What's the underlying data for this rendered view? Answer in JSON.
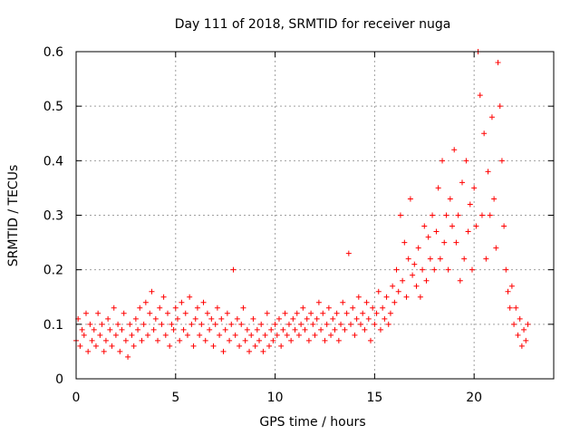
{
  "chart_data": {
    "type": "scatter",
    "title": "Day 111 of 2018, SRMTID for receiver nuga",
    "xlabel": "GPS time / hours",
    "ylabel": "SRMTID / TECUs",
    "xlim": [
      0,
      24
    ],
    "ylim": [
      0,
      0.6
    ],
    "x_ticks": [
      0,
      5,
      10,
      15,
      20
    ],
    "x_tick_labels": [
      "0",
      "5",
      "10",
      "15",
      "20"
    ],
    "y_ticks": [
      0,
      0.1,
      0.2,
      0.3,
      0.4,
      0.5,
      0.6
    ],
    "y_tick_labels": [
      "0",
      "0.1",
      "0.2",
      "0.3",
      "0.4",
      "0.5",
      "0.6"
    ],
    "grid": true,
    "marker": "+",
    "color": "#ff0000",
    "series": [
      {
        "name": "SRMTID",
        "points": [
          [
            0.0,
            0.07
          ],
          [
            0.1,
            0.11
          ],
          [
            0.2,
            0.06
          ],
          [
            0.3,
            0.09
          ],
          [
            0.4,
            0.08
          ],
          [
            0.5,
            0.12
          ],
          [
            0.6,
            0.05
          ],
          [
            0.7,
            0.1
          ],
          [
            0.8,
            0.07
          ],
          [
            0.9,
            0.09
          ],
          [
            1.0,
            0.06
          ],
          [
            1.1,
            0.12
          ],
          [
            1.2,
            0.08
          ],
          [
            1.3,
            0.1
          ],
          [
            1.4,
            0.05
          ],
          [
            1.5,
            0.07
          ],
          [
            1.6,
            0.11
          ],
          [
            1.7,
            0.09
          ],
          [
            1.8,
            0.06
          ],
          [
            1.9,
            0.13
          ],
          [
            2.0,
            0.08
          ],
          [
            2.1,
            0.1
          ],
          [
            2.2,
            0.05
          ],
          [
            2.3,
            0.09
          ],
          [
            2.4,
            0.12
          ],
          [
            2.5,
            0.07
          ],
          [
            2.6,
            0.04
          ],
          [
            2.7,
            0.1
          ],
          [
            2.8,
            0.08
          ],
          [
            2.9,
            0.06
          ],
          [
            3.0,
            0.11
          ],
          [
            3.1,
            0.09
          ],
          [
            3.2,
            0.13
          ],
          [
            3.3,
            0.07
          ],
          [
            3.4,
            0.1
          ],
          [
            3.5,
            0.14
          ],
          [
            3.6,
            0.08
          ],
          [
            3.7,
            0.12
          ],
          [
            3.8,
            0.16
          ],
          [
            3.9,
            0.09
          ],
          [
            4.0,
            0.11
          ],
          [
            4.1,
            0.07
          ],
          [
            4.2,
            0.13
          ],
          [
            4.3,
            0.1
          ],
          [
            4.4,
            0.15
          ],
          [
            4.5,
            0.08
          ],
          [
            4.6,
            0.12
          ],
          [
            4.7,
            0.06
          ],
          [
            4.8,
            0.1
          ],
          [
            4.9,
            0.09
          ],
          [
            5.0,
            0.13
          ],
          [
            5.1,
            0.11
          ],
          [
            5.2,
            0.07
          ],
          [
            5.3,
            0.14
          ],
          [
            5.4,
            0.09
          ],
          [
            5.5,
            0.12
          ],
          [
            5.6,
            0.08
          ],
          [
            5.7,
            0.15
          ],
          [
            5.8,
            0.1
          ],
          [
            5.9,
            0.06
          ],
          [
            6.0,
            0.11
          ],
          [
            6.1,
            0.13
          ],
          [
            6.2,
            0.08
          ],
          [
            6.3,
            0.1
          ],
          [
            6.4,
            0.14
          ],
          [
            6.5,
            0.07
          ],
          [
            6.6,
            0.12
          ],
          [
            6.7,
            0.09
          ],
          [
            6.8,
            0.11
          ],
          [
            6.9,
            0.06
          ],
          [
            7.0,
            0.1
          ],
          [
            7.1,
            0.13
          ],
          [
            7.2,
            0.08
          ],
          [
            7.3,
            0.11
          ],
          [
            7.4,
            0.05
          ],
          [
            7.5,
            0.09
          ],
          [
            7.6,
            0.12
          ],
          [
            7.7,
            0.07
          ],
          [
            7.8,
            0.1
          ],
          [
            7.9,
            0.2
          ],
          [
            8.0,
            0.08
          ],
          [
            8.1,
            0.11
          ],
          [
            8.2,
            0.06
          ],
          [
            8.3,
            0.1
          ],
          [
            8.4,
            0.13
          ],
          [
            8.5,
            0.07
          ],
          [
            8.6,
            0.09
          ],
          [
            8.7,
            0.05
          ],
          [
            8.8,
            0.08
          ],
          [
            8.9,
            0.11
          ],
          [
            9.0,
            0.06
          ],
          [
            9.1,
            0.09
          ],
          [
            9.2,
            0.07
          ],
          [
            9.3,
            0.1
          ],
          [
            9.4,
            0.05
          ],
          [
            9.5,
            0.08
          ],
          [
            9.6,
            0.12
          ],
          [
            9.7,
            0.06
          ],
          [
            9.8,
            0.09
          ],
          [
            9.9,
            0.07
          ],
          [
            10.0,
            0.1
          ],
          [
            10.1,
            0.08
          ],
          [
            10.2,
            0.11
          ],
          [
            10.3,
            0.06
          ],
          [
            10.4,
            0.09
          ],
          [
            10.5,
            0.12
          ],
          [
            10.6,
            0.08
          ],
          [
            10.7,
            0.1
          ],
          [
            10.8,
            0.07
          ],
          [
            10.9,
            0.11
          ],
          [
            11.0,
            0.09
          ],
          [
            11.1,
            0.12
          ],
          [
            11.2,
            0.08
          ],
          [
            11.3,
            0.1
          ],
          [
            11.4,
            0.13
          ],
          [
            11.5,
            0.09
          ],
          [
            11.6,
            0.11
          ],
          [
            11.7,
            0.07
          ],
          [
            11.8,
            0.12
          ],
          [
            11.9,
            0.1
          ],
          [
            12.0,
            0.08
          ],
          [
            12.1,
            0.11
          ],
          [
            12.2,
            0.14
          ],
          [
            12.3,
            0.09
          ],
          [
            12.4,
            0.12
          ],
          [
            12.5,
            0.07
          ],
          [
            12.6,
            0.1
          ],
          [
            12.7,
            0.13
          ],
          [
            12.8,
            0.08
          ],
          [
            12.9,
            0.11
          ],
          [
            13.0,
            0.09
          ],
          [
            13.1,
            0.12
          ],
          [
            13.2,
            0.07
          ],
          [
            13.3,
            0.1
          ],
          [
            13.4,
            0.14
          ],
          [
            13.5,
            0.09
          ],
          [
            13.6,
            0.12
          ],
          [
            13.7,
            0.23
          ],
          [
            13.8,
            0.1
          ],
          [
            13.9,
            0.13
          ],
          [
            14.0,
            0.08
          ],
          [
            14.1,
            0.11
          ],
          [
            14.2,
            0.15
          ],
          [
            14.3,
            0.1
          ],
          [
            14.4,
            0.12
          ],
          [
            14.5,
            0.09
          ],
          [
            14.6,
            0.14
          ],
          [
            14.7,
            0.11
          ],
          [
            14.8,
            0.07
          ],
          [
            14.9,
            0.13
          ],
          [
            15.0,
            0.1
          ],
          [
            15.1,
            0.12
          ],
          [
            15.2,
            0.16
          ],
          [
            15.3,
            0.09
          ],
          [
            15.4,
            0.13
          ],
          [
            15.5,
            0.11
          ],
          [
            15.6,
            0.15
          ],
          [
            15.7,
            0.1
          ],
          [
            15.8,
            0.12
          ],
          [
            15.9,
            0.17
          ],
          [
            16.0,
            0.14
          ],
          [
            16.1,
            0.2
          ],
          [
            16.2,
            0.16
          ],
          [
            16.3,
            0.3
          ],
          [
            16.4,
            0.18
          ],
          [
            16.5,
            0.25
          ],
          [
            16.6,
            0.15
          ],
          [
            16.7,
            0.22
          ],
          [
            16.8,
            0.33
          ],
          [
            16.9,
            0.19
          ],
          [
            17.0,
            0.21
          ],
          [
            17.1,
            0.17
          ],
          [
            17.2,
            0.24
          ],
          [
            17.3,
            0.15
          ],
          [
            17.4,
            0.2
          ],
          [
            17.5,
            0.28
          ],
          [
            17.6,
            0.18
          ],
          [
            17.7,
            0.26
          ],
          [
            17.8,
            0.22
          ],
          [
            17.9,
            0.3
          ],
          [
            18.0,
            0.2
          ],
          [
            18.1,
            0.27
          ],
          [
            18.2,
            0.35
          ],
          [
            18.3,
            0.22
          ],
          [
            18.4,
            0.4
          ],
          [
            18.5,
            0.25
          ],
          [
            18.6,
            0.3
          ],
          [
            18.7,
            0.2
          ],
          [
            18.8,
            0.33
          ],
          [
            18.9,
            0.28
          ],
          [
            19.0,
            0.42
          ],
          [
            19.1,
            0.25
          ],
          [
            19.2,
            0.3
          ],
          [
            19.3,
            0.18
          ],
          [
            19.4,
            0.36
          ],
          [
            19.5,
            0.22
          ],
          [
            19.6,
            0.4
          ],
          [
            19.7,
            0.27
          ],
          [
            19.8,
            0.32
          ],
          [
            19.9,
            0.2
          ],
          [
            20.0,
            0.35
          ],
          [
            20.1,
            0.28
          ],
          [
            20.2,
            0.6
          ],
          [
            20.3,
            0.52
          ],
          [
            20.4,
            0.3
          ],
          [
            20.5,
            0.45
          ],
          [
            20.6,
            0.22
          ],
          [
            20.7,
            0.38
          ],
          [
            20.8,
            0.3
          ],
          [
            20.9,
            0.48
          ],
          [
            21.0,
            0.33
          ],
          [
            21.1,
            0.24
          ],
          [
            21.2,
            0.58
          ],
          [
            21.3,
            0.5
          ],
          [
            21.4,
            0.4
          ],
          [
            21.5,
            0.28
          ],
          [
            21.6,
            0.2
          ],
          [
            21.7,
            0.16
          ],
          [
            21.8,
            0.13
          ],
          [
            21.9,
            0.17
          ],
          [
            22.0,
            0.1
          ],
          [
            22.1,
            0.13
          ],
          [
            22.2,
            0.08
          ],
          [
            22.3,
            0.11
          ],
          [
            22.4,
            0.06
          ],
          [
            22.5,
            0.09
          ],
          [
            22.6,
            0.07
          ],
          [
            22.7,
            0.1
          ]
        ]
      }
    ]
  }
}
